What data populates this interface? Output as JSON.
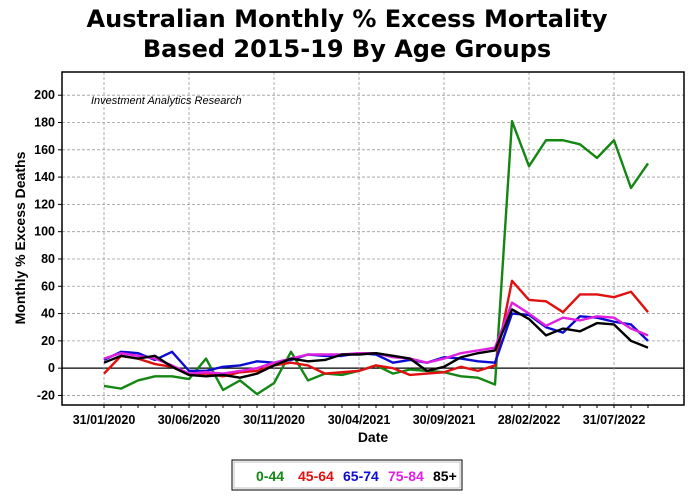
{
  "chart_data": {
    "type": "line",
    "title": [
      "Australian Monthly % Excess Mortality",
      "Based 2015-19 By Age Groups"
    ],
    "xlabel": "Date",
    "ylabel": "Monthly % Excess Deaths",
    "annotation": "Investment Analytics Research",
    "x": [
      "31/01/2020",
      "29/02/2020",
      "31/03/2020",
      "30/04/2020",
      "31/05/2020",
      "30/06/2020",
      "31/07/2020",
      "31/08/2020",
      "30/09/2020",
      "31/10/2020",
      "30/11/2020",
      "31/12/2020",
      "31/01/2021",
      "28/02/2021",
      "31/03/2021",
      "30/04/2021",
      "31/05/2021",
      "30/06/2021",
      "31/07/2021",
      "31/08/2021",
      "30/09/2021",
      "31/10/2021",
      "30/11/2021",
      "31/12/2021",
      "31/01/2022",
      "28/02/2022",
      "31/03/2022",
      "30/04/2022",
      "31/05/2022",
      "30/06/2022",
      "31/07/2022",
      "31/08/2022",
      "30/09/2022"
    ],
    "x_tick_labels": [
      "31/01/2020",
      "30/06/2020",
      "30/11/2020",
      "30/04/2021",
      "30/09/2021",
      "28/02/2022",
      "31/07/2022"
    ],
    "y_ticks": [
      -20,
      0,
      20,
      40,
      60,
      80,
      100,
      120,
      140,
      160,
      180,
      200
    ],
    "ylim": [
      -27,
      217
    ],
    "grid": true,
    "legend_position": "bottom",
    "series": [
      {
        "name": "0-44",
        "color": "#138613",
        "values": [
          -13,
          -15,
          -9,
          -6,
          -6,
          -8,
          7,
          -16,
          -9,
          -19,
          -11,
          12,
          -9,
          -4,
          -5,
          -2,
          2,
          -4,
          -1,
          -2,
          -3,
          -6,
          -7,
          -12,
          181,
          148,
          167,
          167,
          164,
          154,
          167,
          132,
          150
        ]
      },
      {
        "name": "45-64",
        "color": "#e01010",
        "values": [
          -4,
          9,
          7,
          3,
          1,
          -5,
          -4,
          -6,
          -3,
          -2,
          2,
          4,
          2,
          -4,
          -3,
          -2,
          2,
          0,
          -5,
          -4,
          -3,
          1,
          -2,
          2,
          64,
          50,
          49,
          41,
          54,
          54,
          52,
          56,
          41
        ]
      },
      {
        "name": "65-74",
        "color": "#0c0cd0",
        "values": [
          6,
          12,
          11,
          6,
          12,
          -2,
          -2,
          1,
          2,
          5,
          4,
          6,
          10,
          9,
          9,
          11,
          10,
          4,
          6,
          4,
          8,
          7,
          5,
          4,
          40,
          39,
          30,
          26,
          38,
          37,
          34,
          32,
          20
        ]
      },
      {
        "name": "75-84",
        "color": "#e020e0",
        "values": [
          7,
          11,
          9,
          7,
          2,
          -4,
          -3,
          -4,
          -2,
          0,
          4,
          7,
          10,
          10,
          10,
          11,
          11,
          8,
          7,
          4,
          7,
          11,
          13,
          15,
          48,
          40,
          31,
          37,
          35,
          38,
          37,
          29,
          24
        ]
      },
      {
        "name": "85+",
        "color": "#000000",
        "values": [
          4,
          9,
          7,
          9,
          1,
          -5,
          -6,
          -5,
          -7,
          -4,
          2,
          7,
          5,
          6,
          10,
          10,
          11,
          9,
          7,
          -2,
          1,
          8,
          11,
          13,
          43,
          36,
          24,
          29,
          27,
          33,
          32,
          20,
          15
        ]
      }
    ]
  }
}
